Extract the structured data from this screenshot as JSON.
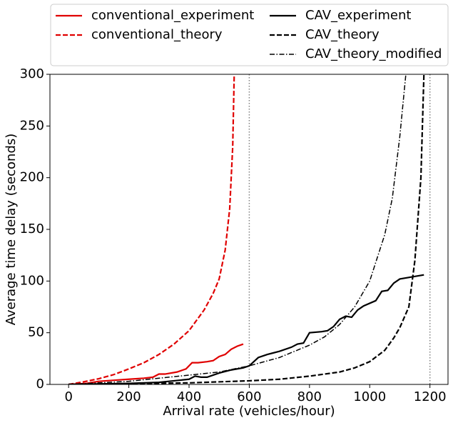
{
  "chart_data": {
    "type": "line",
    "xlabel": "Arrival rate (vehicles/hour)",
    "ylabel": "Average time delay (seconds)",
    "xlim": [
      -62,
      1260
    ],
    "ylim": [
      0,
      300
    ],
    "xticks": [
      0,
      200,
      400,
      600,
      800,
      1000,
      1200
    ],
    "yticks": [
      0,
      50,
      100,
      150,
      200,
      250,
      300
    ],
    "vlines": [
      600,
      1200
    ],
    "vline_color": "#808080",
    "legend": "top",
    "series": [
      {
        "name": "conventional_experiment",
        "color": "#e00000",
        "style": "solid",
        "x": [
          0,
          60,
          100,
          150,
          200,
          250,
          280,
          300,
          320,
          360,
          390,
          410,
          430,
          460,
          480,
          500,
          520,
          540,
          560,
          580
        ],
        "values": [
          0,
          1,
          3,
          4,
          5,
          6,
          7,
          10,
          10,
          12,
          15,
          21,
          21,
          22,
          23,
          27,
          29,
          34,
          37,
          39
        ]
      },
      {
        "name": "conventional_theory",
        "color": "#e00000",
        "style": "dashed",
        "x": [
          0,
          50,
          100,
          150,
          200,
          250,
          300,
          350,
          400,
          450,
          480,
          500,
          520,
          535,
          545,
          550
        ],
        "values": [
          0,
          2.5,
          5.5,
          9.5,
          15,
          21,
          29,
          39,
          52,
          72,
          88,
          102,
          130,
          170,
          230,
          300
        ]
      },
      {
        "name": "CAV_experiment",
        "color": "#000000",
        "style": "solid",
        "x": [
          0,
          200,
          300,
          400,
          420,
          440,
          460,
          500,
          540,
          580,
          600,
          630,
          660,
          700,
          740,
          760,
          780,
          800,
          840,
          860,
          880,
          900,
          920,
          940,
          960,
          980,
          1020,
          1040,
          1060,
          1080,
          1100,
          1140,
          1180
        ],
        "values": [
          0,
          1,
          2,
          5,
          8,
          7,
          7,
          11,
          14,
          16,
          18,
          26,
          29,
          32,
          36,
          39,
          40,
          50,
          51,
          52,
          56,
          63,
          66,
          65,
          72,
          76,
          81,
          90,
          91,
          98,
          102,
          104,
          106
        ]
      },
      {
        "name": "CAV_theory",
        "color": "#000000",
        "style": "dashed",
        "x": [
          0,
          200,
          400,
          600,
          700,
          800,
          900,
          950,
          1000,
          1050,
          1080,
          1100,
          1130,
          1150,
          1170,
          1180
        ],
        "values": [
          0,
          0.7,
          1.5,
          3.5,
          5,
          8,
          12,
          16,
          22,
          33,
          45,
          55,
          75,
          120,
          200,
          300
        ]
      },
      {
        "name": "CAV_theory_modified",
        "color": "#000000",
        "style": "dashdot",
        "x": [
          0,
          200,
          400,
          500,
          600,
          700,
          800,
          850,
          900,
          950,
          1000,
          1050,
          1075,
          1100,
          1120
        ],
        "values": [
          0,
          3,
          9,
          12,
          18,
          26,
          38,
          46,
          58,
          75,
          100,
          145,
          180,
          240,
          300
        ]
      }
    ]
  }
}
